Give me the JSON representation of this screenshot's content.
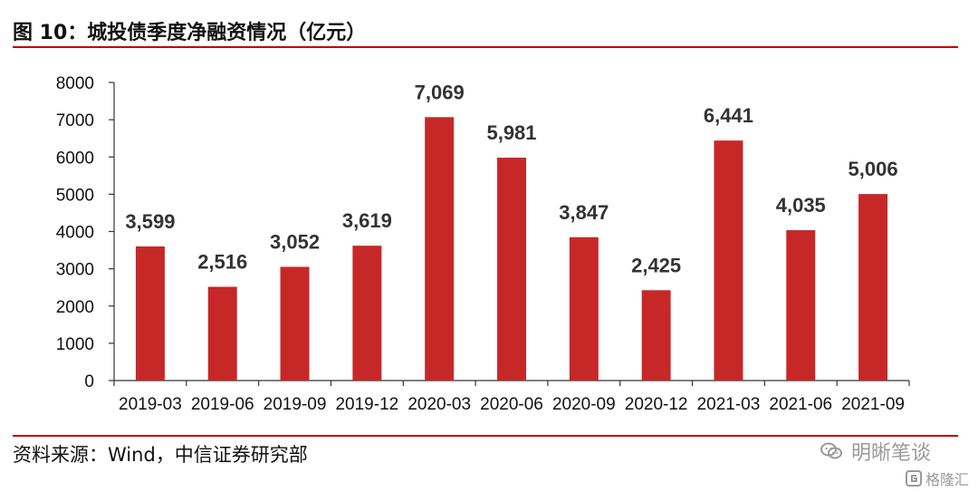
{
  "page": {
    "title": "图 10：城投债季度净融资情况（亿元）",
    "source": "资料来源：Wind，中信证券研究部",
    "watermark": "明晰笔谈",
    "logo_text": "格隆汇"
  },
  "chart_data": {
    "type": "bar",
    "categories": [
      "2019-03",
      "2019-06",
      "2019-09",
      "2019-12",
      "2020-03",
      "2020-06",
      "2020-09",
      "2020-12",
      "2021-03",
      "2021-06",
      "2021-09"
    ],
    "series": [
      {
        "values": [
          3599,
          2516,
          3052,
          3619,
          7069,
          5981,
          3847,
          2425,
          6441,
          4035,
          5006
        ],
        "data_labels": [
          "3,599",
          "2,516",
          "3,052",
          "3,619",
          "7,069",
          "5,981",
          "3,847",
          "2,425",
          "6,441",
          "4,035",
          "5,006"
        ],
        "color": "#c62828"
      }
    ],
    "title": "城投债季度净融资情况（亿元）",
    "xlabel": "",
    "ylabel": "",
    "ylim": [
      0,
      8000
    ],
    "yticks": [
      0,
      1000,
      2000,
      3000,
      4000,
      5000,
      6000,
      7000,
      8000
    ],
    "grid": false,
    "legend": "none"
  }
}
